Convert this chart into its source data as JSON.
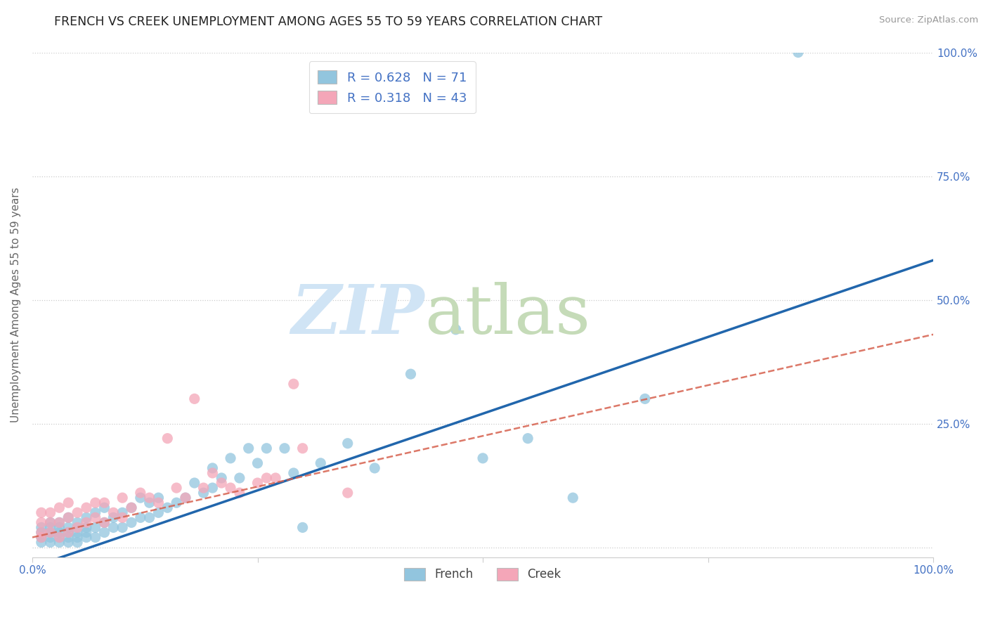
{
  "title": "FRENCH VS CREEK UNEMPLOYMENT AMONG AGES 55 TO 59 YEARS CORRELATION CHART",
  "source": "Source: ZipAtlas.com",
  "ylabel": "Unemployment Among Ages 55 to 59 years",
  "xlim": [
    0,
    1.0
  ],
  "ylim": [
    -0.02,
    1.0
  ],
  "french_R": 0.628,
  "french_N": 71,
  "creek_R": 0.318,
  "creek_N": 43,
  "french_color": "#92c5de",
  "creek_color": "#f4a6b8",
  "french_line_color": "#2166ac",
  "creek_line_color": "#d6604d",
  "watermark_zip_color": "#d0e4f5",
  "watermark_atlas_color": "#c5dbb8",
  "background_color": "#ffffff",
  "title_fontsize": 12.5,
  "axis_label_color": "#4472c4",
  "french_line_x": [
    0.0,
    1.0
  ],
  "french_line_y": [
    -0.04,
    0.58
  ],
  "creek_line_x": [
    0.0,
    1.0
  ],
  "creek_line_y": [
    0.02,
    0.43
  ],
  "french_scatter_x": [
    0.01,
    0.01,
    0.01,
    0.01,
    0.02,
    0.02,
    0.02,
    0.02,
    0.02,
    0.03,
    0.03,
    0.03,
    0.03,
    0.03,
    0.04,
    0.04,
    0.04,
    0.04,
    0.04,
    0.05,
    0.05,
    0.05,
    0.05,
    0.06,
    0.06,
    0.06,
    0.06,
    0.07,
    0.07,
    0.07,
    0.08,
    0.08,
    0.08,
    0.09,
    0.09,
    0.1,
    0.1,
    0.11,
    0.11,
    0.12,
    0.12,
    0.13,
    0.13,
    0.14,
    0.14,
    0.15,
    0.16,
    0.17,
    0.18,
    0.19,
    0.2,
    0.2,
    0.21,
    0.22,
    0.23,
    0.24,
    0.25,
    0.26,
    0.28,
    0.29,
    0.3,
    0.32,
    0.35,
    0.38,
    0.42,
    0.47,
    0.5,
    0.55,
    0.6,
    0.68,
    0.85
  ],
  "french_scatter_y": [
    0.01,
    0.02,
    0.03,
    0.04,
    0.01,
    0.02,
    0.03,
    0.04,
    0.05,
    0.01,
    0.02,
    0.03,
    0.04,
    0.05,
    0.01,
    0.02,
    0.03,
    0.04,
    0.06,
    0.01,
    0.02,
    0.03,
    0.05,
    0.02,
    0.03,
    0.04,
    0.06,
    0.02,
    0.04,
    0.07,
    0.03,
    0.05,
    0.08,
    0.04,
    0.06,
    0.04,
    0.07,
    0.05,
    0.08,
    0.06,
    0.1,
    0.06,
    0.09,
    0.07,
    0.1,
    0.08,
    0.09,
    0.1,
    0.13,
    0.11,
    0.12,
    0.16,
    0.14,
    0.18,
    0.14,
    0.2,
    0.17,
    0.2,
    0.2,
    0.15,
    0.04,
    0.17,
    0.21,
    0.16,
    0.35,
    0.44,
    0.18,
    0.22,
    0.1,
    0.3,
    1.0
  ],
  "creek_scatter_x": [
    0.01,
    0.01,
    0.01,
    0.01,
    0.02,
    0.02,
    0.02,
    0.03,
    0.03,
    0.03,
    0.04,
    0.04,
    0.04,
    0.05,
    0.05,
    0.06,
    0.06,
    0.07,
    0.07,
    0.08,
    0.08,
    0.09,
    0.1,
    0.1,
    0.11,
    0.12,
    0.13,
    0.14,
    0.15,
    0.16,
    0.17,
    0.18,
    0.19,
    0.2,
    0.21,
    0.22,
    0.23,
    0.25,
    0.26,
    0.27,
    0.29,
    0.3,
    0.35
  ],
  "creek_scatter_y": [
    0.02,
    0.03,
    0.05,
    0.07,
    0.03,
    0.05,
    0.07,
    0.02,
    0.05,
    0.08,
    0.03,
    0.06,
    0.09,
    0.04,
    0.07,
    0.05,
    0.08,
    0.06,
    0.09,
    0.05,
    0.09,
    0.07,
    0.06,
    0.1,
    0.08,
    0.11,
    0.1,
    0.09,
    0.22,
    0.12,
    0.1,
    0.3,
    0.12,
    0.15,
    0.13,
    0.12,
    0.11,
    0.13,
    0.14,
    0.14,
    0.33,
    0.2,
    0.11
  ]
}
